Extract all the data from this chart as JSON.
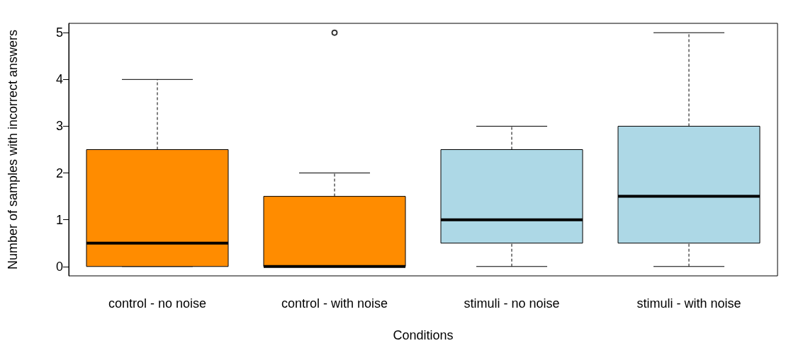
{
  "chart_data": {
    "type": "box",
    "xlabel": "Conditions",
    "ylabel": "Number of samples with incorrect answers",
    "categories": [
      "control - no noise",
      "control - with noise",
      "stimuli - no noise",
      "stimuli - with noise"
    ],
    "boxes": [
      {
        "low": 0,
        "q1": 0,
        "median": 0.5,
        "q3": 2.5,
        "high": 4
      },
      {
        "low": 0,
        "q1": 0,
        "median": 0,
        "q3": 1.5,
        "high": 2,
        "outliers": [
          5
        ]
      },
      {
        "low": 0,
        "q1": 0.5,
        "median": 1,
        "q3": 2.5,
        "high": 3
      },
      {
        "low": 0,
        "q1": 0.5,
        "median": 1.5,
        "q3": 3,
        "high": 5
      }
    ],
    "colors": [
      "#ff8c00",
      "#ff8c00",
      "#add8e6",
      "#add8e6"
    ],
    "ylim": [
      -0.2,
      5.2
    ],
    "yticks": [
      0,
      1,
      2,
      3,
      4,
      5
    ]
  }
}
